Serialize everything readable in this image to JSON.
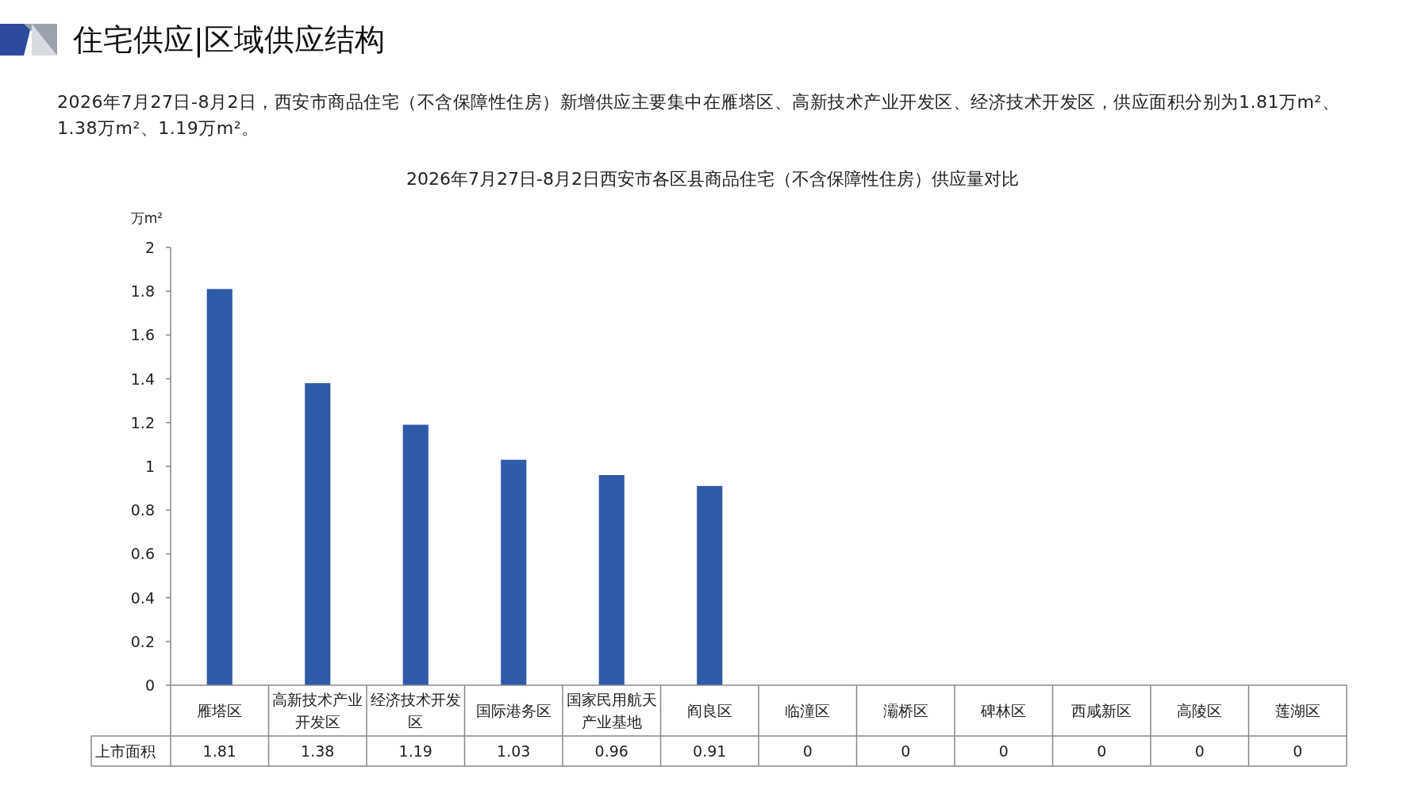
{
  "chart_data": {
    "type": "bar",
    "title": "2026年7月27日-8月2日西安市各区县商品住宅（不含保障性住房）供应量对比",
    "subtitle": "2026年7月27日-8月2日，西安市商品住宅（不含保障性住房）新增供应主要集中在雁塔区、高新技术产业开发区、经济技术开发区，供应面积分别为1.81万m²、1.38万m²、1.19万m²。",
    "annotations": [
      "住宅供应|区域供应结构"
    ],
    "ylabel": "万m²",
    "categories": [
      "雁塔区",
      "高新技术产业开发区",
      "经济技术开发区",
      "国际港务区",
      "国家民用航天产业基地",
      "阎良区",
      "临潼区",
      "灞桥区",
      "碑林区",
      "西咸新区",
      "高陵区",
      "莲湖区"
    ],
    "series": [
      {
        "name": "上市面积",
        "color": "#2e5aa8",
        "values": [
          1.81,
          1.38,
          1.19,
          1.03,
          0.96,
          0.91,
          0,
          0,
          0,
          0,
          0,
          0
        ]
      }
    ],
    "ylim": [
      0,
      2
    ],
    "yticks": [
      0,
      0.2,
      0.4,
      0.6,
      0.8,
      1,
      1.2,
      1.4,
      1.6,
      1.8,
      2
    ],
    "data_labels": true,
    "grid": false
  }
}
